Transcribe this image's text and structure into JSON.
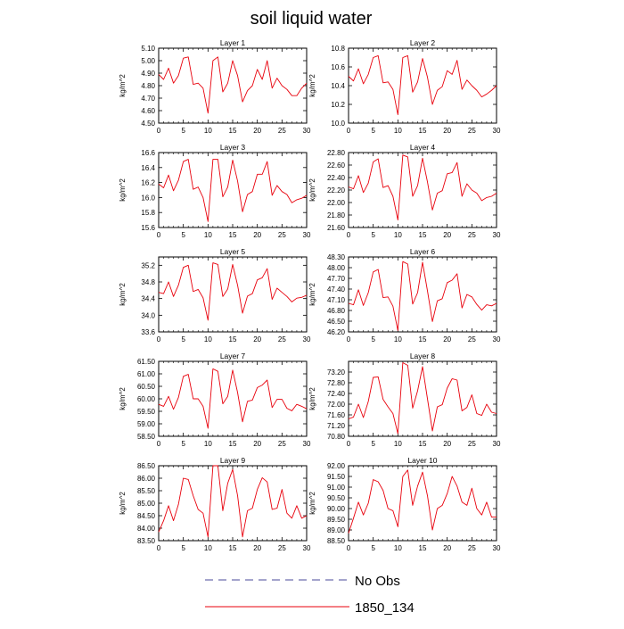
{
  "title": "soil liquid water",
  "legend": {
    "obs_label": "No Obs",
    "obs_color": "#4a4a9a",
    "model_label": "1850_134",
    "model_color": "#e8000b"
  },
  "chart_data": [
    {
      "type": "line",
      "title": "Layer 1",
      "ylabel": "kg/m^2",
      "xlim": [
        0,
        30
      ],
      "xticks": [
        0,
        5,
        10,
        15,
        20,
        25,
        30
      ],
      "ylim": [
        4.5,
        5.1
      ],
      "yticks": [
        "4.50",
        "4.60",
        "4.70",
        "4.80",
        "4.90",
        "5.00",
        "5.10"
      ],
      "x": [
        0,
        1,
        2,
        3,
        4,
        5,
        6,
        7,
        8,
        9,
        10,
        11,
        12,
        13,
        14,
        15,
        16,
        17,
        18,
        19,
        20,
        21,
        22,
        23,
        24,
        25,
        26,
        27,
        28,
        29,
        30
      ],
      "series": [
        {
          "values": [
            4.89,
            4.85,
            4.94,
            4.82,
            4.88,
            5.02,
            5.03,
            4.81,
            4.82,
            4.78,
            4.58,
            5.0,
            5.03,
            4.75,
            4.82,
            5.0,
            4.88,
            4.67,
            4.76,
            4.8,
            4.93,
            4.85,
            5.0,
            4.78,
            4.86,
            4.8,
            4.77,
            4.72,
            4.72,
            4.78,
            4.82
          ]
        }
      ]
    },
    {
      "type": "line",
      "title": "Layer 2",
      "ylabel": "kg/m^2",
      "xlim": [
        0,
        30
      ],
      "xticks": [
        0,
        5,
        10,
        15,
        20,
        25,
        30
      ],
      "ylim": [
        10.0,
        10.8
      ],
      "yticks": [
        "10.0",
        "10.2",
        "10.4",
        "10.6",
        "10.8"
      ],
      "x": [
        0,
        1,
        2,
        3,
        4,
        5,
        6,
        7,
        8,
        9,
        10,
        11,
        12,
        13,
        14,
        15,
        16,
        17,
        18,
        19,
        20,
        21,
        22,
        23,
        24,
        25,
        26,
        27,
        28,
        29,
        30
      ],
      "series": [
        {
          "values": [
            10.5,
            10.45,
            10.58,
            10.42,
            10.52,
            10.7,
            10.72,
            10.43,
            10.44,
            10.36,
            10.09,
            10.7,
            10.72,
            10.33,
            10.44,
            10.69,
            10.49,
            10.2,
            10.35,
            10.39,
            10.56,
            10.52,
            10.67,
            10.36,
            10.46,
            10.4,
            10.35,
            10.28,
            10.31,
            10.35,
            10.4
          ]
        }
      ]
    },
    {
      "type": "line",
      "title": "Layer 3",
      "ylabel": "kg/m^2",
      "xlim": [
        0,
        30
      ],
      "xticks": [
        0,
        5,
        10,
        15,
        20,
        25,
        30
      ],
      "ylim": [
        15.6,
        16.6
      ],
      "yticks": [
        "15.6",
        "15.8",
        "16.0",
        "16.2",
        "16.4",
        "16.6"
      ],
      "x": [
        0,
        1,
        2,
        3,
        4,
        5,
        6,
        7,
        8,
        9,
        10,
        11,
        12,
        13,
        14,
        15,
        16,
        17,
        18,
        19,
        20,
        21,
        22,
        23,
        24,
        25,
        26,
        27,
        28,
        29,
        30
      ],
      "series": [
        {
          "values": [
            16.18,
            16.13,
            16.3,
            16.09,
            16.23,
            16.48,
            16.51,
            16.11,
            16.14,
            16.0,
            15.68,
            16.51,
            16.51,
            16.01,
            16.14,
            16.5,
            16.22,
            15.81,
            16.04,
            16.08,
            16.31,
            16.31,
            16.48,
            16.03,
            16.16,
            16.08,
            16.04,
            15.93,
            15.97,
            15.99,
            16.03
          ]
        }
      ]
    },
    {
      "type": "line",
      "title": "Layer 4",
      "ylabel": "kg/m^2",
      "xlim": [
        0,
        30
      ],
      "xticks": [
        0,
        5,
        10,
        15,
        20,
        25,
        30
      ],
      "ylim": [
        21.6,
        22.8
      ],
      "yticks": [
        "21.60",
        "21.80",
        "22.00",
        "22.20",
        "22.40",
        "22.60",
        "22.80"
      ],
      "x": [
        0,
        1,
        2,
        3,
        4,
        5,
        6,
        7,
        8,
        9,
        10,
        11,
        12,
        13,
        14,
        15,
        16,
        17,
        18,
        19,
        20,
        21,
        22,
        23,
        24,
        25,
        26,
        27,
        28,
        29,
        30
      ],
      "series": [
        {
          "values": [
            22.25,
            22.22,
            22.43,
            22.16,
            22.31,
            22.65,
            22.7,
            22.24,
            22.27,
            22.1,
            21.72,
            22.76,
            22.73,
            22.1,
            22.27,
            22.71,
            22.33,
            21.88,
            22.15,
            22.19,
            22.46,
            22.48,
            22.64,
            22.1,
            22.3,
            22.2,
            22.15,
            22.03,
            22.08,
            22.1,
            22.15
          ]
        }
      ]
    },
    {
      "type": "line",
      "title": "Layer 5",
      "ylabel": "kg/m^2",
      "xlim": [
        0,
        30
      ],
      "xticks": [
        0,
        5,
        10,
        15,
        20,
        25,
        30
      ],
      "ylim": [
        33.6,
        35.4
      ],
      "yticks": [
        "33.6",
        "34.0",
        "34.4",
        "34.8",
        "35.2"
      ],
      "x": [
        0,
        1,
        2,
        3,
        4,
        5,
        6,
        7,
        8,
        9,
        10,
        11,
        12,
        13,
        14,
        15,
        16,
        17,
        18,
        19,
        20,
        21,
        22,
        23,
        24,
        25,
        26,
        27,
        28,
        29,
        30
      ],
      "series": [
        {
          "values": [
            34.55,
            34.52,
            34.8,
            34.45,
            34.72,
            35.15,
            35.2,
            34.57,
            34.62,
            34.42,
            33.88,
            35.26,
            35.22,
            34.45,
            34.63,
            35.22,
            34.72,
            34.05,
            34.46,
            34.52,
            34.85,
            34.9,
            35.12,
            34.38,
            34.65,
            34.55,
            34.45,
            34.32,
            34.41,
            34.43,
            34.48
          ]
        }
      ]
    },
    {
      "type": "line",
      "title": "Layer 6",
      "ylabel": "kg/m^2",
      "xlim": [
        0,
        30
      ],
      "xticks": [
        0,
        5,
        10,
        15,
        20,
        25,
        30
      ],
      "ylim": [
        46.2,
        48.3
      ],
      "yticks": [
        "46.20",
        "46.50",
        "46.80",
        "47.10",
        "47.40",
        "47.70",
        "48.00",
        "48.30"
      ],
      "x": [
        0,
        1,
        2,
        3,
        4,
        5,
        6,
        7,
        8,
        9,
        10,
        11,
        12,
        13,
        14,
        15,
        16,
        17,
        18,
        19,
        20,
        21,
        22,
        23,
        24,
        25,
        26,
        27,
        28,
        29,
        30
      ],
      "series": [
        {
          "values": [
            47.0,
            46.96,
            47.38,
            46.94,
            47.3,
            47.88,
            47.95,
            47.16,
            47.18,
            46.92,
            46.24,
            48.17,
            48.1,
            46.98,
            47.3,
            48.15,
            47.35,
            46.49,
            47.07,
            47.13,
            47.58,
            47.65,
            47.83,
            46.87,
            47.25,
            47.18,
            46.97,
            46.81,
            46.96,
            46.93,
            47.0
          ]
        }
      ]
    },
    {
      "type": "line",
      "title": "Layer 7",
      "ylabel": "kg/m^2",
      "xlim": [
        0,
        30
      ],
      "xticks": [
        0,
        5,
        10,
        15,
        20,
        25,
        30
      ],
      "ylim": [
        58.5,
        61.5
      ],
      "yticks": [
        "58.50",
        "59.00",
        "59.50",
        "60.00",
        "60.50",
        "61.00",
        "61.50"
      ],
      "x": [
        0,
        1,
        2,
        3,
        4,
        5,
        6,
        7,
        8,
        9,
        10,
        11,
        12,
        13,
        14,
        15,
        16,
        17,
        18,
        19,
        20,
        21,
        22,
        23,
        24,
        25,
        26,
        27,
        28,
        29,
        30
      ],
      "series": [
        {
          "values": [
            59.78,
            59.7,
            60.1,
            59.58,
            60.05,
            60.9,
            60.98,
            60.0,
            60.0,
            59.7,
            58.82,
            61.2,
            61.1,
            59.8,
            60.1,
            61.15,
            60.25,
            59.08,
            59.9,
            59.95,
            60.45,
            60.55,
            60.75,
            59.65,
            59.98,
            59.98,
            59.62,
            59.52,
            59.78,
            59.7,
            59.6
          ]
        }
      ]
    },
    {
      "type": "line",
      "title": "Layer 8",
      "ylabel": "kg/m^2",
      "xlim": [
        0,
        30
      ],
      "xticks": [
        0,
        5,
        10,
        15,
        20,
        25,
        30
      ],
      "ylim": [
        70.8,
        73.6
      ],
      "yticks": [
        "70.80",
        "71.20",
        "71.60",
        "72.00",
        "72.40",
        "72.80",
        "73.20"
      ],
      "x": [
        0,
        1,
        2,
        3,
        4,
        5,
        6,
        7,
        8,
        9,
        10,
        11,
        12,
        13,
        14,
        15,
        16,
        17,
        18,
        19,
        20,
        21,
        22,
        23,
        24,
        25,
        26,
        27,
        28,
        29,
        30
      ],
      "series": [
        {
          "values": [
            71.45,
            71.52,
            72.0,
            71.5,
            72.1,
            73.0,
            73.02,
            72.18,
            71.9,
            71.65,
            70.9,
            73.55,
            73.45,
            71.85,
            72.5,
            73.4,
            72.2,
            71.0,
            71.9,
            71.98,
            72.6,
            72.95,
            72.9,
            71.75,
            71.88,
            72.35,
            71.65,
            71.58,
            72.0,
            71.7,
            71.65
          ]
        }
      ]
    },
    {
      "type": "line",
      "title": "Layer 9",
      "ylabel": "kg/m^2",
      "xlim": [
        0,
        30
      ],
      "xticks": [
        0,
        5,
        10,
        15,
        20,
        25,
        30
      ],
      "ylim": [
        83.5,
        86.5
      ],
      "yticks": [
        "83.50",
        "84.00",
        "84.50",
        "85.00",
        "85.50",
        "86.00",
        "86.50"
      ],
      "x": [
        0,
        1,
        2,
        3,
        4,
        5,
        6,
        7,
        8,
        9,
        10,
        11,
        12,
        13,
        14,
        15,
        16,
        17,
        18,
        19,
        20,
        21,
        22,
        23,
        24,
        25,
        26,
        27,
        28,
        29,
        30
      ],
      "series": [
        {
          "values": [
            83.85,
            84.3,
            84.9,
            84.3,
            84.95,
            86.0,
            85.95,
            85.3,
            84.75,
            84.6,
            83.65,
            86.55,
            86.5,
            84.7,
            85.8,
            86.35,
            85.3,
            83.65,
            84.7,
            84.8,
            85.55,
            86.02,
            85.85,
            84.75,
            84.8,
            85.55,
            84.6,
            84.4,
            84.9,
            84.4,
            84.5
          ]
        }
      ]
    },
    {
      "type": "line",
      "title": "Layer 10",
      "ylabel": "kg/m^2",
      "xlim": [
        0,
        30
      ],
      "xticks": [
        0,
        5,
        10,
        15,
        20,
        25,
        30
      ],
      "ylim": [
        88.5,
        92.0
      ],
      "yticks": [
        "88.50",
        "89.00",
        "89.50",
        "90.00",
        "90.50",
        "91.00",
        "91.50",
        "92.00"
      ],
      "x": [
        0,
        1,
        2,
        3,
        4,
        5,
        6,
        7,
        8,
        9,
        10,
        11,
        12,
        13,
        14,
        15,
        16,
        17,
        18,
        19,
        20,
        21,
        22,
        23,
        24,
        25,
        26,
        27,
        28,
        29,
        30
      ],
      "series": [
        {
          "values": [
            88.85,
            89.55,
            90.3,
            89.7,
            90.25,
            91.35,
            91.25,
            90.85,
            90.0,
            89.9,
            89.15,
            91.5,
            91.8,
            90.15,
            91.05,
            91.7,
            90.6,
            89.0,
            90.0,
            90.15,
            90.7,
            91.5,
            91.05,
            90.3,
            90.15,
            90.95,
            90.0,
            89.7,
            90.3,
            89.6,
            89.6
          ]
        }
      ]
    }
  ]
}
